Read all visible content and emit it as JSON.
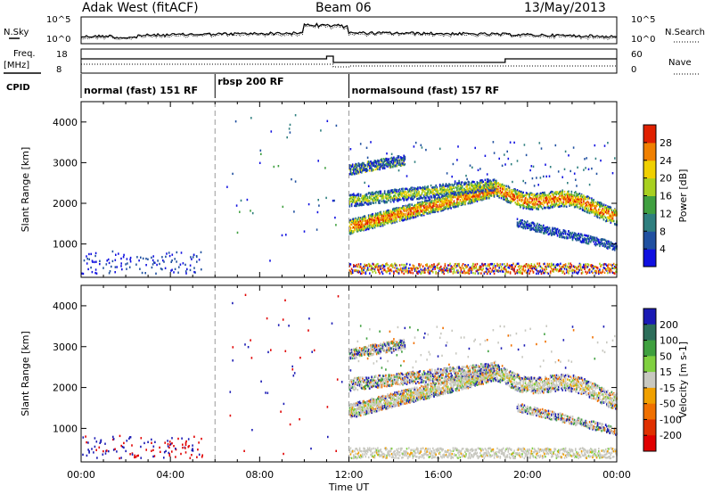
{
  "header": {
    "station": "Adak West (fitACF)",
    "beam": "Beam 06",
    "date": "13/May/2013"
  },
  "strip_labels": {
    "nsky": "N.Sky",
    "nsearch": "N.Search",
    "freq": "Freq.",
    "freq_unit": "[MHz]",
    "nave": "Nave",
    "cpid": "CPID",
    "nsky_ticks": [
      "10^5",
      "10^0"
    ],
    "nsearch_ticks": [
      "10^5",
      "10^0"
    ],
    "freq_ticks": [
      "18",
      "8"
    ],
    "nave_ticks": [
      "60",
      "0"
    ]
  },
  "cpid_segments": [
    {
      "label": "normal (fast) 151 RF",
      "start_hour": 0
    },
    {
      "label": "rbsp 200 RF",
      "start_hour": 6
    },
    {
      "label": "normalsound (fast) 157 RF",
      "start_hour": 12
    }
  ],
  "chart_data": [
    {
      "type": "heatmap",
      "name": "power",
      "ylabel": "Slant Range [km]",
      "xlabel": "Time UT",
      "xlim_hours": [
        0,
        24
      ],
      "ylim": [
        180,
        4500
      ],
      "y_ticks": [
        1000,
        2000,
        3000,
        4000
      ],
      "x_tick_labels": [
        "00:00",
        "04:00",
        "08:00",
        "12:00",
        "16:00",
        "20:00",
        "00:00"
      ],
      "colorbar": {
        "label": "Power [dB]",
        "ticks": [
          "4",
          "8",
          "12",
          "16",
          "20",
          "24",
          "28"
        ],
        "colors": [
          "#1010e0",
          "#2050a0",
          "#2f7f7f",
          "#40a040",
          "#a8d020",
          "#f0d000",
          "#f08000",
          "#e02000"
        ]
      }
    },
    {
      "type": "heatmap",
      "name": "velocity",
      "ylabel": "Slant Range [km]",
      "xlabel": "Time UT",
      "xlim_hours": [
        0,
        24
      ],
      "ylim": [
        180,
        4500
      ],
      "y_ticks": [
        1000,
        2000,
        3000,
        4000
      ],
      "x_tick_labels": [
        "00:00",
        "04:00",
        "08:00",
        "12:00",
        "16:00",
        "20:00",
        "00:00"
      ],
      "colorbar": {
        "label": "Velocity [m s-1]",
        "ticks": [
          "200",
          "100",
          "50",
          "15",
          "-15",
          "-50",
          "-100",
          "-200"
        ],
        "colors": [
          "#1a1ab4",
          "#2d6e5a",
          "#3fa03f",
          "#80d040",
          "#c8c8c0",
          "#f0a000",
          "#f07000",
          "#e03000",
          "#e00000"
        ]
      }
    }
  ],
  "x_axis": {
    "title": "Time UT",
    "tick_labels": [
      "00:00",
      "04:00",
      "08:00",
      "12:00",
      "16:00",
      "20:00",
      "00:00"
    ]
  }
}
